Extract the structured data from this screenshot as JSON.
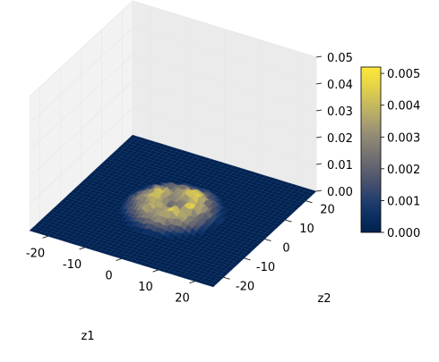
{
  "chart_data": {
    "type": "surface3d",
    "title": "",
    "xlabel": "z1",
    "ylabel": "z2",
    "zlabel": "",
    "colormap": "cividis",
    "x_ticks": [
      "-20",
      "-10",
      "0",
      "10",
      "20"
    ],
    "y_ticks": [
      "-20",
      "-10",
      "0",
      "10",
      "20"
    ],
    "z_ticks": [
      "0.00",
      "0.01",
      "0.02",
      "0.03",
      "0.04",
      "0.05"
    ],
    "xlim": [
      -25,
      25
    ],
    "ylim": [
      -25,
      25
    ],
    "zlim": [
      0,
      0.05
    ],
    "colorbar": {
      "ticks": [
        "0.000",
        "0.001",
        "0.002",
        "0.003",
        "0.004",
        "0.005"
      ],
      "range": [
        0,
        0.0052
      ]
    },
    "surface_peak_approx": 0.0052,
    "surface_support_radius_approx": 12,
    "grid": true,
    "colors": {
      "cmap_low": "#00224e",
      "cmap_mid": "#7c7b78",
      "cmap_high": "#fee838"
    }
  }
}
